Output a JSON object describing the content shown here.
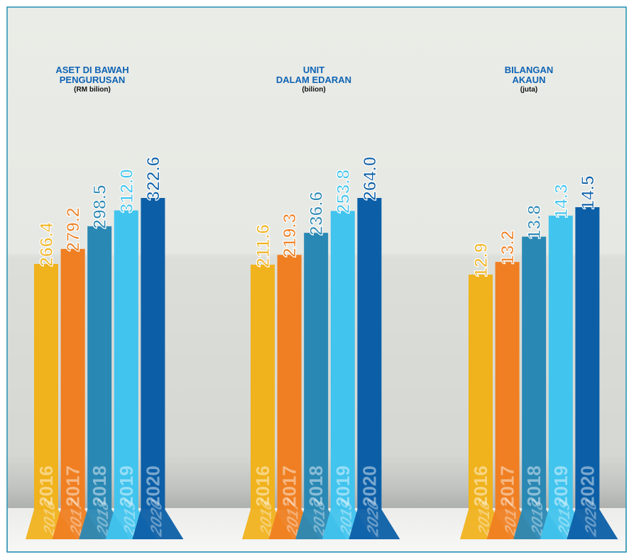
{
  "colors": {
    "frame": "#1f8fb5",
    "background_top": "#eaece7",
    "background_bottom": "#d8dad6",
    "years": [
      "#f0b21d",
      "#ef7f22",
      "#2a88b4",
      "#41c4ee",
      "#0c5fa7"
    ]
  },
  "chart_data": [
    {
      "type": "bar",
      "title": [
        "ASET DI BAWAH",
        "PENGURUSAN"
      ],
      "unit": "(RM bilion)",
      "categories": [
        "2016",
        "2017",
        "2018",
        "2019",
        "2020"
      ],
      "values": [
        266.4,
        279.2,
        298.5,
        312.0,
        322.6
      ],
      "value_labels": [
        "266.4",
        "279.2",
        "298.5",
        "312.0",
        "322.6"
      ]
    },
    {
      "type": "bar",
      "title": [
        "UNIT",
        "DALAM EDARAN"
      ],
      "unit": "(bilion)",
      "categories": [
        "2016",
        "2017",
        "2018",
        "2019",
        "2020"
      ],
      "values": [
        211.6,
        219.3,
        236.6,
        253.8,
        264.0
      ],
      "value_labels": [
        "211.6",
        "219.3",
        "236.6",
        "253.8",
        "264.0"
      ]
    },
    {
      "type": "bar",
      "title": [
        "BILANGAN",
        "AKAUN"
      ],
      "unit": "(juta)",
      "categories": [
        "2016",
        "2017",
        "2018",
        "2019",
        "2020"
      ],
      "values": [
        12.9,
        13.2,
        13.8,
        14.3,
        14.5
      ],
      "value_labels": [
        "12.9",
        "13.2",
        "13.8",
        "14.3",
        "14.5"
      ]
    }
  ]
}
